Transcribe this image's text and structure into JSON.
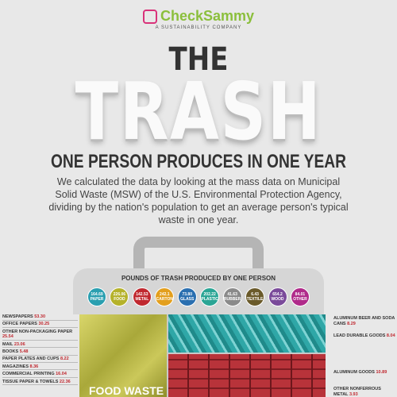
{
  "header": {
    "brand": "CheckSammy",
    "tagline": "A SUSTAINABILITY COMPANY",
    "kicker": "THE",
    "title": "TRASH",
    "subtitle": "ONE PERSON PRODUCES IN ONE YEAR",
    "intro": "We calculated the data by looking at the mass data on Municipal Solid Waste (MSW) of the U.S. Environmental Protection Agency, dividing by the nation's population to get an average person's typical waste in one year."
  },
  "summary": {
    "title": "POUNDS OF TRASH PRODUCED BY ONE PERSON",
    "items": [
      {
        "value": "164.69",
        "label": "PAPER",
        "color": "#2a9fb0"
      },
      {
        "value": "226.06",
        "label": "FOOD",
        "color": "#b5b22a"
      },
      {
        "value": "142.53",
        "label": "METAL",
        "color": "#c0282f"
      },
      {
        "value": "242.1",
        "label": "CARTON",
        "color": "#e39f1d"
      },
      {
        "value": "73.80",
        "label": "GLASS",
        "color": "#2a6fb0"
      },
      {
        "value": "202.22",
        "label": "PLASTIC",
        "color": "#2aa595"
      },
      {
        "value": "41.63",
        "label": "RUBBER",
        "color": "#8a8a8a"
      },
      {
        "value": "6.43",
        "label": "TEXTILE",
        "color": "#6a5a2a"
      },
      {
        "value": "654.2",
        "label": "WOOD",
        "color": "#7a4a9a"
      },
      {
        "value": "84.01",
        "label": "OTHER",
        "color": "#b02a8a"
      }
    ]
  },
  "paper_items": [
    {
      "label": "NEWSPAPERS",
      "value": "53.30"
    },
    {
      "label": "OFFICE PAPERS",
      "value": "30.25"
    },
    {
      "label": "OTHER NON-PACKAGING PAPER",
      "value": "25.54"
    },
    {
      "label": "MAIL",
      "value": "23.06"
    },
    {
      "label": "BOOKS",
      "value": "5.48"
    },
    {
      "label": "PAPER PLATES AND CUPS",
      "value": "8.22"
    },
    {
      "label": "MAGAZINES",
      "value": "8.36"
    },
    {
      "label": "COMMERCIAL PRINTING",
      "value": "16.04"
    },
    {
      "label": "TISSUE PAPER & TOWELS",
      "value": "22.36"
    }
  ],
  "metal_items": [
    {
      "label": "ALUMINUM BEER AND SODA CANS",
      "value": "8.29"
    },
    {
      "label": "LEAD DURABLE GOODS",
      "value": "8.04"
    },
    {
      "label": "ALUMINUM GOODS",
      "value": "10.89"
    },
    {
      "label": "OTHER NONFERROUS METAL",
      "value": "3.93"
    }
  ],
  "food_label": "FOOD WASTE"
}
